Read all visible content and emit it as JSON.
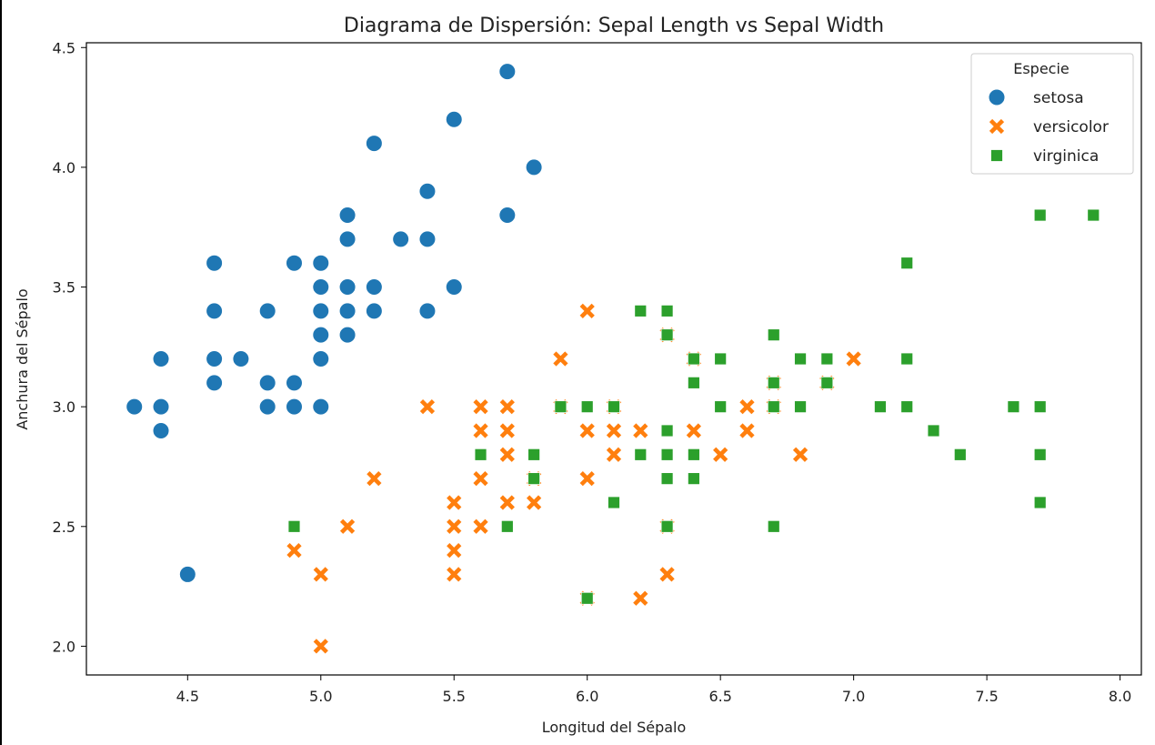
{
  "chart_data": {
    "type": "scatter",
    "title": "Diagrama de Dispersión: Sepal Length vs Sepal Width",
    "xlabel": "Longitud del Sépalo",
    "ylabel": "Anchura del Sépalo",
    "xlim": [
      4.12,
      8.08
    ],
    "ylim": [
      1.88,
      4.52
    ],
    "xticks": [
      "4.5",
      "5.0",
      "5.5",
      "6.0",
      "6.5",
      "7.0",
      "7.5",
      "8.0"
    ],
    "yticks": [
      "2.0",
      "2.5",
      "3.0",
      "3.5",
      "4.0",
      "4.5"
    ],
    "grid": false,
    "legend": {
      "title": "Especie",
      "position": "top-right"
    },
    "series": [
      {
        "name": "setosa",
        "marker": "circle",
        "color": "#1f77b4",
        "points": [
          [
            4.3,
            3.0
          ],
          [
            4.4,
            3.2
          ],
          [
            4.4,
            3.0
          ],
          [
            4.4,
            2.9
          ],
          [
            4.5,
            2.3
          ],
          [
            4.6,
            3.6
          ],
          [
            4.6,
            3.4
          ],
          [
            4.6,
            3.2
          ],
          [
            4.6,
            3.1
          ],
          [
            4.7,
            3.2
          ],
          [
            4.8,
            3.4
          ],
          [
            4.8,
            3.1
          ],
          [
            4.8,
            3.0
          ],
          [
            4.9,
            3.6
          ],
          [
            4.9,
            3.1
          ],
          [
            4.9,
            3.0
          ],
          [
            5.0,
            3.6
          ],
          [
            5.0,
            3.5
          ],
          [
            5.0,
            3.4
          ],
          [
            5.0,
            3.3
          ],
          [
            5.0,
            3.2
          ],
          [
            5.0,
            3.0
          ],
          [
            5.1,
            3.8
          ],
          [
            5.1,
            3.7
          ],
          [
            5.1,
            3.5
          ],
          [
            5.1,
            3.4
          ],
          [
            5.1,
            3.3
          ],
          [
            5.2,
            4.1
          ],
          [
            5.2,
            3.5
          ],
          [
            5.2,
            3.4
          ],
          [
            5.3,
            3.7
          ],
          [
            5.4,
            3.9
          ],
          [
            5.4,
            3.7
          ],
          [
            5.4,
            3.4
          ],
          [
            5.5,
            4.2
          ],
          [
            5.5,
            3.5
          ],
          [
            5.7,
            4.4
          ],
          [
            5.7,
            3.8
          ],
          [
            5.8,
            4.0
          ]
        ]
      },
      {
        "name": "versicolor",
        "marker": "x",
        "color": "#ff7f0e",
        "points": [
          [
            4.9,
            2.4
          ],
          [
            5.0,
            2.3
          ],
          [
            5.0,
            2.0
          ],
          [
            5.1,
            2.5
          ],
          [
            5.2,
            2.7
          ],
          [
            5.4,
            3.0
          ],
          [
            5.5,
            2.6
          ],
          [
            5.5,
            2.5
          ],
          [
            5.5,
            2.4
          ],
          [
            5.5,
            2.3
          ],
          [
            5.6,
            3.0
          ],
          [
            5.6,
            2.9
          ],
          [
            5.6,
            2.7
          ],
          [
            5.6,
            2.5
          ],
          [
            5.7,
            3.0
          ],
          [
            5.7,
            2.9
          ],
          [
            5.7,
            2.8
          ],
          [
            5.7,
            2.6
          ],
          [
            5.8,
            2.7
          ],
          [
            5.8,
            2.6
          ],
          [
            5.9,
            3.2
          ],
          [
            5.9,
            3.0
          ],
          [
            6.0,
            3.4
          ],
          [
            6.0,
            2.9
          ],
          [
            6.0,
            2.7
          ],
          [
            6.0,
            2.2
          ],
          [
            6.1,
            3.0
          ],
          [
            6.1,
            2.9
          ],
          [
            6.1,
            2.8
          ],
          [
            6.2,
            2.9
          ],
          [
            6.2,
            2.2
          ],
          [
            6.3,
            3.3
          ],
          [
            6.3,
            2.5
          ],
          [
            6.3,
            2.3
          ],
          [
            6.4,
            3.2
          ],
          [
            6.4,
            2.9
          ],
          [
            6.5,
            2.8
          ],
          [
            6.6,
            3.0
          ],
          [
            6.6,
            2.9
          ],
          [
            6.7,
            3.1
          ],
          [
            6.7,
            3.0
          ],
          [
            6.8,
            2.8
          ],
          [
            6.9,
            3.1
          ],
          [
            7.0,
            3.2
          ]
        ]
      },
      {
        "name": "virginica",
        "marker": "square",
        "color": "#2ca02c",
        "points": [
          [
            4.9,
            2.5
          ],
          [
            5.6,
            2.8
          ],
          [
            5.7,
            2.5
          ],
          [
            5.8,
            2.8
          ],
          [
            5.8,
            2.7
          ],
          [
            5.9,
            3.0
          ],
          [
            6.0,
            3.0
          ],
          [
            6.0,
            2.2
          ],
          [
            6.1,
            3.0
          ],
          [
            6.1,
            2.6
          ],
          [
            6.2,
            3.4
          ],
          [
            6.2,
            2.8
          ],
          [
            6.3,
            3.4
          ],
          [
            6.3,
            3.3
          ],
          [
            6.3,
            2.9
          ],
          [
            6.3,
            2.8
          ],
          [
            6.3,
            2.7
          ],
          [
            6.3,
            2.5
          ],
          [
            6.4,
            3.2
          ],
          [
            6.4,
            3.1
          ],
          [
            6.4,
            2.8
          ],
          [
            6.4,
            2.7
          ],
          [
            6.5,
            3.2
          ],
          [
            6.5,
            3.0
          ],
          [
            6.7,
            3.3
          ],
          [
            6.7,
            3.1
          ],
          [
            6.7,
            3.0
          ],
          [
            6.7,
            2.5
          ],
          [
            6.8,
            3.2
          ],
          [
            6.8,
            3.0
          ],
          [
            6.9,
            3.2
          ],
          [
            6.9,
            3.1
          ],
          [
            7.1,
            3.0
          ],
          [
            7.2,
            3.6
          ],
          [
            7.2,
            3.2
          ],
          [
            7.2,
            3.0
          ],
          [
            7.3,
            2.9
          ],
          [
            7.4,
            2.8
          ],
          [
            7.6,
            3.0
          ],
          [
            7.7,
            3.8
          ],
          [
            7.7,
            3.0
          ],
          [
            7.7,
            2.8
          ],
          [
            7.7,
            2.6
          ],
          [
            7.9,
            3.8
          ]
        ]
      }
    ]
  }
}
